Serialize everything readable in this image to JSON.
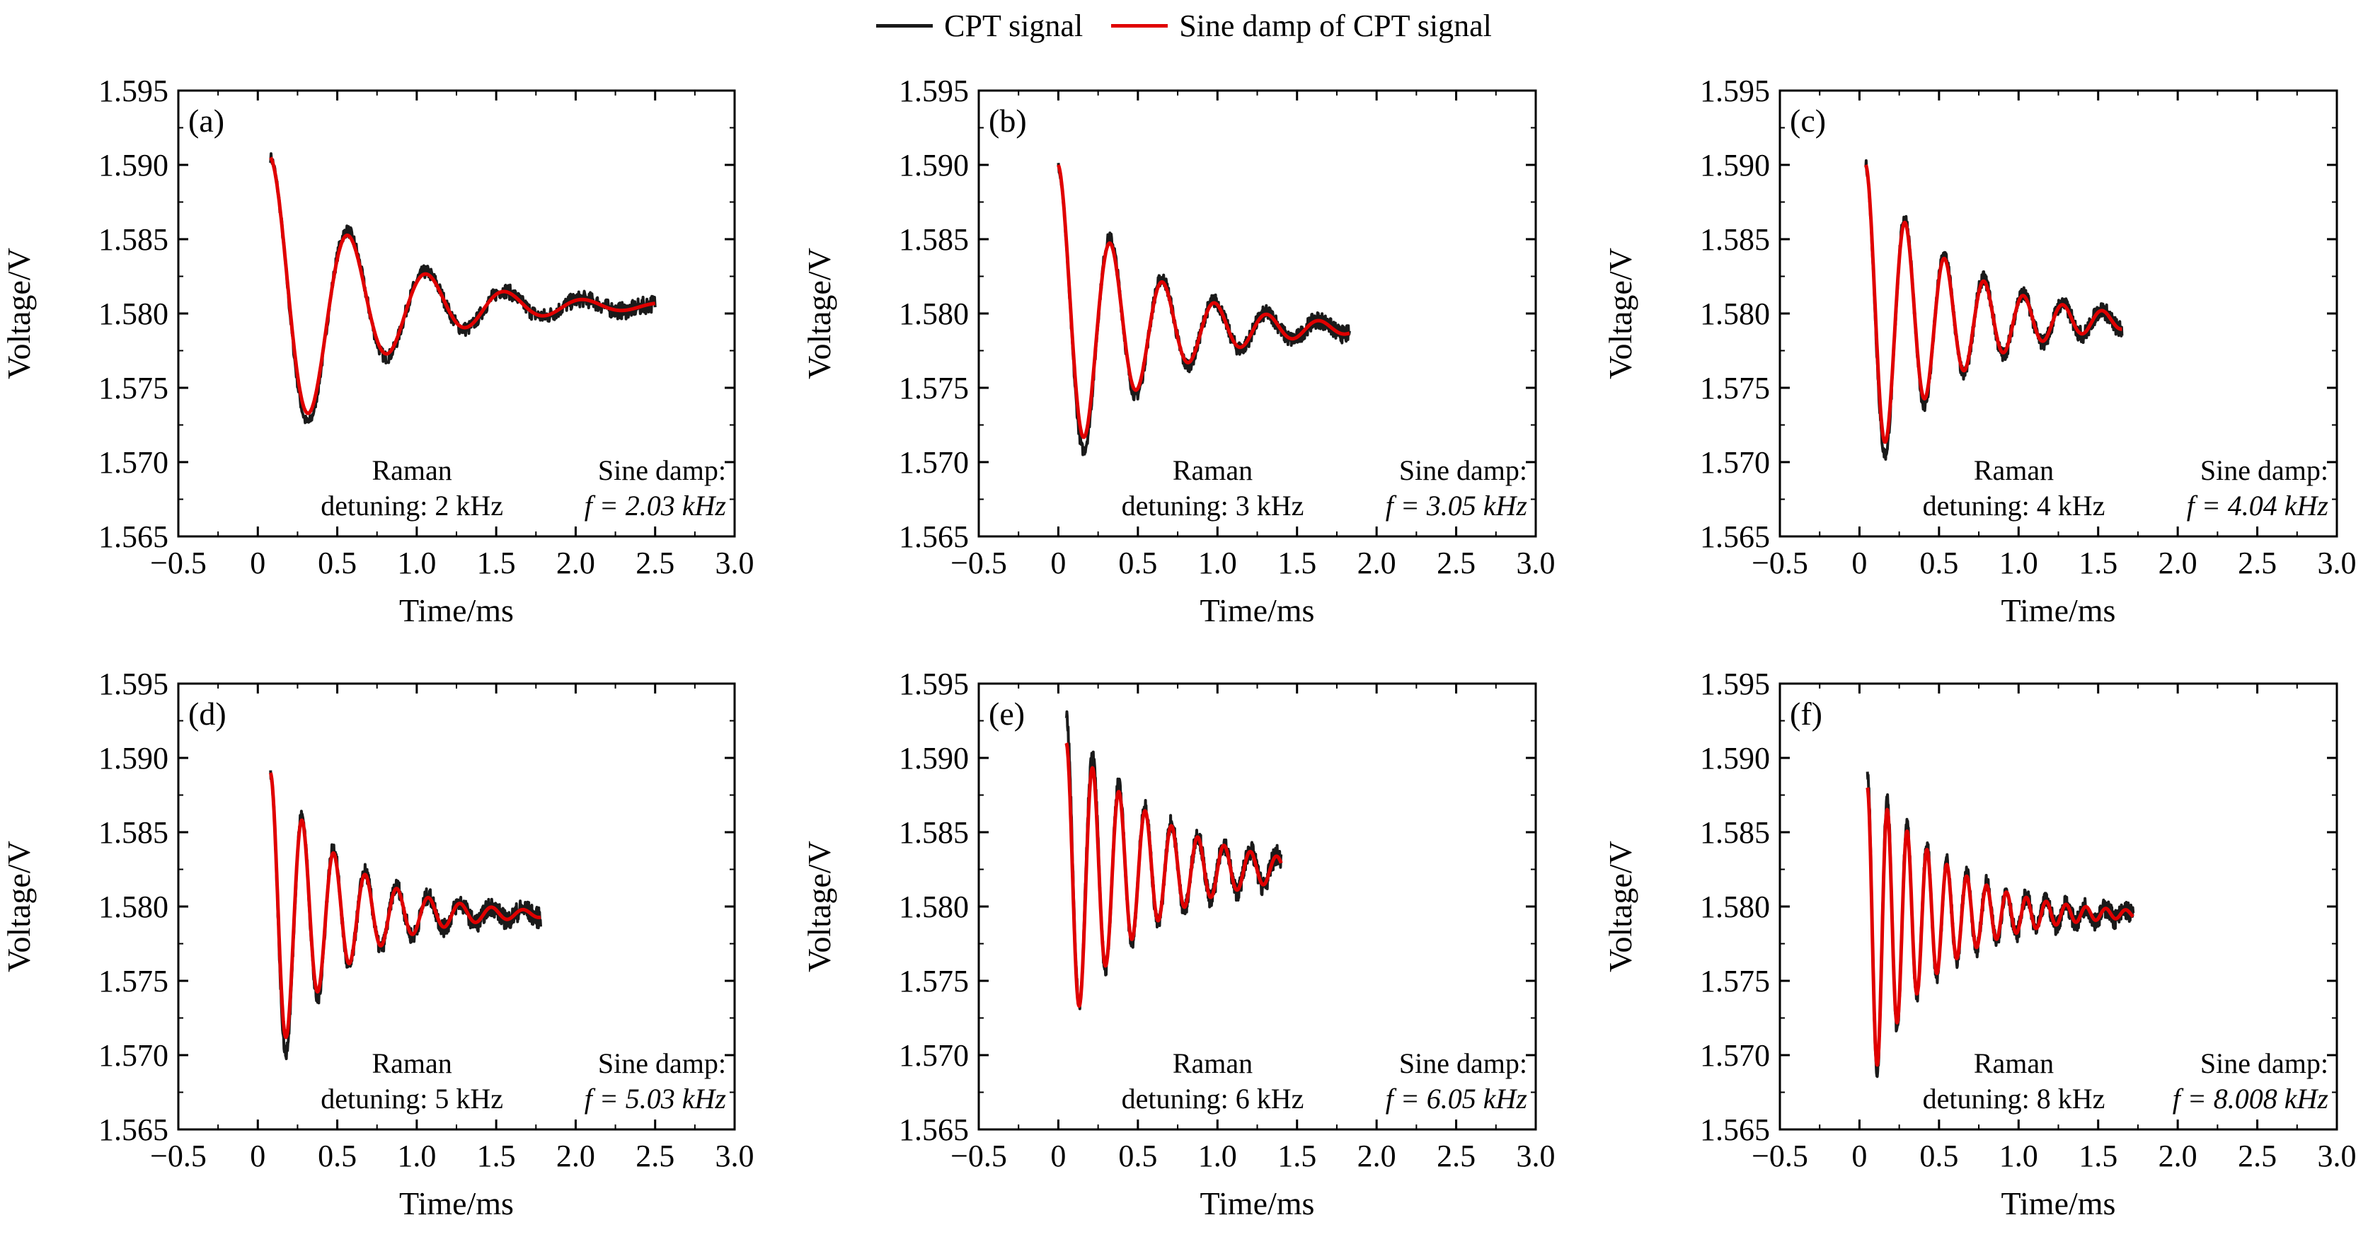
{
  "legend": {
    "items": [
      {
        "label": "CPT signal",
        "color": "#1a1a1a"
      },
      {
        "label": "Sine damp of CPT signal",
        "color": "#e00000"
      }
    ]
  },
  "chart_data": [
    {
      "panel": "(a)",
      "type": "line",
      "xlabel": "Time/ms",
      "ylabel": "Voltage/V",
      "xlim": [
        -0.5,
        3.0
      ],
      "ylim": [
        1.565,
        1.595
      ],
      "xticks": [
        "−0.5",
        "0",
        "0.5",
        "1.0",
        "1.5",
        "2.0",
        "2.5",
        "3.0"
      ],
      "yticks": [
        "1.565",
        "1.570",
        "1.575",
        "1.580",
        "1.585",
        "1.590",
        "1.595"
      ],
      "annotation_left": [
        "Raman",
        "detuning: 2 kHz"
      ],
      "annotation_right": [
        "Sine damp:",
        "f = 2.03 kHz"
      ],
      "detuning_khz": 2,
      "fit_frequency_khz": 2.03,
      "series": [
        {
          "name": "CPT signal",
          "x_range": [
            0.08,
            2.5
          ],
          "start": 1.5905,
          "end": 1.5805,
          "amplitude": 0.0112,
          "decay_ms": 0.62,
          "noise": 0.0006
        },
        {
          "name": "Sine damp of CPT signal",
          "x_range": [
            0.08,
            2.5
          ],
          "start": 1.5905,
          "end": 1.5805,
          "amplitude": 0.0105,
          "decay_ms": 0.62
        }
      ]
    },
    {
      "panel": "(b)",
      "type": "line",
      "xlabel": "Time/ms",
      "ylabel": "Voltage/V",
      "xlim": [
        -0.5,
        3.0
      ],
      "ylim": [
        1.565,
        1.595
      ],
      "xticks": [
        "−0.5",
        "0",
        "0.5",
        "1.0",
        "1.5",
        "2.0",
        "2.5",
        "3.0"
      ],
      "yticks": [
        "1.565",
        "1.570",
        "1.575",
        "1.580",
        "1.585",
        "1.590",
        "1.595"
      ],
      "annotation_left": [
        "Raman",
        "detuning: 3 kHz"
      ],
      "annotation_right": [
        "Sine damp:",
        "f = 3.05 kHz"
      ],
      "detuning_khz": 3,
      "fit_frequency_khz": 3.05,
      "series": [
        {
          "name": "CPT signal",
          "x_range": [
            0.0,
            1.83
          ],
          "start": 1.59,
          "end": 1.579,
          "amplitude": 0.011,
          "decay_ms": 0.55,
          "noise": 0.0006
        },
        {
          "name": "Sine damp of CPT signal",
          "x_range": [
            0.0,
            1.83
          ],
          "start": 1.59,
          "end": 1.579,
          "amplitude": 0.0102,
          "decay_ms": 0.55
        }
      ]
    },
    {
      "panel": "(c)",
      "type": "line",
      "xlabel": "Time/ms",
      "ylabel": "Voltage/V",
      "xlim": [
        -0.5,
        3.0
      ],
      "ylim": [
        1.565,
        1.595
      ],
      "xticks": [
        "−0.5",
        "0",
        "0.5",
        "1.0",
        "1.5",
        "2.0",
        "2.5",
        "3.0"
      ],
      "yticks": [
        "1.565",
        "1.570",
        "1.575",
        "1.580",
        "1.585",
        "1.590",
        "1.595"
      ],
      "annotation_left": [
        "Raman",
        "detuning: 4 kHz"
      ],
      "annotation_right": [
        "Sine damp:",
        "f = 4.04 kHz"
      ],
      "detuning_khz": 4,
      "fit_frequency_khz": 4.04,
      "series": [
        {
          "name": "CPT signal",
          "x_range": [
            0.04,
            1.65
          ],
          "start": 1.59,
          "end": 1.5795,
          "amplitude": 0.011,
          "decay_ms": 0.55,
          "noise": 0.0006
        },
        {
          "name": "Sine damp of CPT signal",
          "x_range": [
            0.04,
            1.65
          ],
          "start": 1.59,
          "end": 1.5795,
          "amplitude": 0.0103,
          "decay_ms": 0.55
        }
      ]
    },
    {
      "panel": "(d)",
      "type": "line",
      "xlabel": "Time/ms",
      "ylabel": "Voltage/V",
      "xlim": [
        -0.5,
        3.0
      ],
      "ylim": [
        1.565,
        1.595
      ],
      "xticks": [
        "−0.5",
        "0",
        "0.5",
        "1.0",
        "1.5",
        "2.0",
        "2.5",
        "3.0"
      ],
      "yticks": [
        "1.565",
        "1.570",
        "1.575",
        "1.580",
        "1.585",
        "1.590",
        "1.595"
      ],
      "annotation_left": [
        "Raman",
        "detuning: 5 kHz"
      ],
      "annotation_right": [
        "Sine damp:",
        "f = 5.03 kHz"
      ],
      "detuning_khz": 5,
      "fit_frequency_khz": 5.03,
      "series": [
        {
          "name": "CPT signal",
          "x_range": [
            0.08,
            1.78
          ],
          "start": 1.589,
          "end": 1.5795,
          "amplitude": 0.0108,
          "decay_ms": 0.45,
          "noise": 0.0007
        },
        {
          "name": "Sine damp of CPT signal",
          "x_range": [
            0.08,
            1.78
          ],
          "start": 1.589,
          "end": 1.5795,
          "amplitude": 0.01,
          "decay_ms": 0.45
        }
      ]
    },
    {
      "panel": "(e)",
      "type": "line",
      "xlabel": "Time/ms",
      "ylabel": "Voltage/V",
      "xlim": [
        -0.5,
        3.0
      ],
      "ylim": [
        1.565,
        1.595
      ],
      "xticks": [
        "−0.5",
        "0",
        "0.5",
        "1.0",
        "1.5",
        "2.0",
        "2.5",
        "3.0"
      ],
      "yticks": [
        "1.565",
        "1.570",
        "1.575",
        "1.580",
        "1.585",
        "1.590",
        "1.595"
      ],
      "annotation_left": [
        "Raman",
        "detuning: 6 kHz"
      ],
      "annotation_right": [
        "Sine damp:",
        "f = 6.05 kHz"
      ],
      "detuning_khz": 6,
      "fit_frequency_khz": 6.05,
      "series": [
        {
          "name": "CPT signal",
          "x_range": [
            0.05,
            1.4
          ],
          "start": 1.593,
          "end": 1.5825,
          "amplitude": 0.0105,
          "decay_ms": 0.55,
          "noise": 0.0007
        },
        {
          "name": "Sine damp of CPT signal",
          "x_range": [
            0.05,
            1.4
          ],
          "start": 1.591,
          "end": 1.5825,
          "amplitude": 0.0098,
          "decay_ms": 0.55
        }
      ]
    },
    {
      "panel": "(f)",
      "type": "line",
      "xlabel": "Time/ms",
      "ylabel": "Voltage/V",
      "xlim": [
        -0.5,
        3.0
      ],
      "ylim": [
        1.565,
        1.595
      ],
      "xticks": [
        "−0.5",
        "0",
        "0.5",
        "1.0",
        "1.5",
        "2.0",
        "2.5",
        "3.0"
      ],
      "yticks": [
        "1.565",
        "1.570",
        "1.575",
        "1.580",
        "1.585",
        "1.590",
        "1.595"
      ],
      "annotation_left": [
        "Raman",
        "detuning: 8 kHz"
      ],
      "annotation_right": [
        "Sine damp:",
        "f = 8.008 kHz"
      ],
      "detuning_khz": 8,
      "fit_frequency_khz": 8.008,
      "series": [
        {
          "name": "CPT signal",
          "x_range": [
            0.05,
            1.72
          ],
          "start": 1.589,
          "end": 1.5795,
          "amplitude": 0.011,
          "decay_ms": 0.45,
          "noise": 0.0007
        },
        {
          "name": "Sine damp of CPT signal",
          "x_range": [
            0.05,
            1.72
          ],
          "start": 1.588,
          "end": 1.5795,
          "amplitude": 0.0103,
          "decay_ms": 0.45
        }
      ]
    }
  ]
}
